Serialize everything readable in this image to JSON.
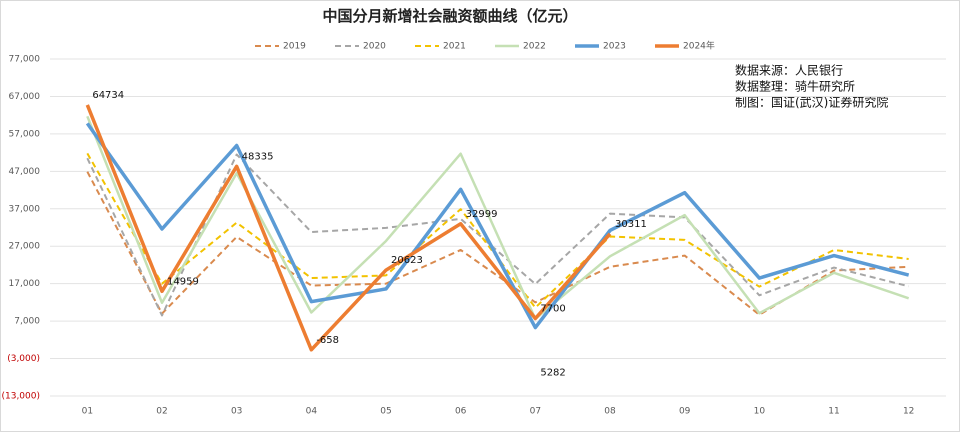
{
  "chart_data": {
    "type": "line",
    "title": "中国分月新增社会融资额曲线（亿元）",
    "annotations": [
      "数据来源：人民银行",
      "数据整理：骑牛研究所",
      "制图：国证(武汉)证券研究院"
    ],
    "categories": [
      "01",
      "02",
      "03",
      "04",
      "05",
      "06",
      "07",
      "08",
      "09",
      "10",
      "11",
      "12"
    ],
    "series": [
      {
        "name": "2019",
        "color": "#d98a4e",
        "dashed": true,
        "width": 2,
        "values": [
          46900,
          9000,
          29500,
          16500,
          17000,
          26000,
          12000,
          21500,
          24500,
          8700,
          20500,
          21500
        ]
      },
      {
        "name": "2020",
        "color": "#a6a6a6",
        "dashed": true,
        "width": 2,
        "values": [
          50500,
          8500,
          51500,
          30800,
          31900,
          34300,
          16900,
          35700,
          34700,
          13900,
          21300,
          16300
        ]
      },
      {
        "name": "2021",
        "color": "#f2c200",
        "dashed": true,
        "width": 2,
        "values": [
          51800,
          17000,
          33300,
          18500,
          19200,
          36900,
          10600,
          29600,
          28700,
          16200,
          26000,
          23600
        ]
      },
      {
        "name": "2022",
        "color": "#c5e0b4",
        "dashed": false,
        "width": 2.5,
        "values": [
          61700,
          11900,
          46500,
          9300,
          28400,
          51700,
          7600,
          24300,
          35300,
          9100,
          19900,
          13100
        ]
      },
      {
        "name": "2023",
        "color": "#5b9bd5",
        "dashed": false,
        "width": 3.5,
        "values": [
          59800,
          31600,
          53900,
          12200,
          15600,
          42200,
          5282,
          31200,
          41300,
          18500,
          24500,
          19300
        ],
        "value_labels": [
          null,
          null,
          null,
          null,
          null,
          null,
          "5282",
          null,
          null,
          null,
          null,
          null
        ]
      },
      {
        "name": "2024年",
        "color": "#ed7d31",
        "dashed": false,
        "width": 3.5,
        "values": [
          64734,
          14959,
          48335,
          -658,
          20623,
          32999,
          7700,
          30311,
          null,
          null,
          null,
          null
        ],
        "value_labels": [
          "64734",
          "14959",
          "48335",
          "-658",
          "20623",
          "32999",
          "7700",
          "30311",
          null,
          null,
          null,
          null
        ]
      }
    ],
    "ylim": [
      -13000,
      77000
    ],
    "yticks": [
      {
        "value": -13000,
        "label": "(13,000)"
      },
      {
        "value": -3000,
        "label": "(3,000)"
      },
      {
        "value": 7000,
        "label": "7,000"
      },
      {
        "value": 17000,
        "label": "17,000"
      },
      {
        "value": 27000,
        "label": "27,000"
      },
      {
        "value": 37000,
        "label": "37,000"
      },
      {
        "value": 47000,
        "label": "47,000"
      },
      {
        "value": 57000,
        "label": "57,000"
      },
      {
        "value": 67000,
        "label": "67,000"
      },
      {
        "value": 77000,
        "label": "77,000"
      }
    ],
    "negative_label_color": "#c00000",
    "grid": true
  }
}
